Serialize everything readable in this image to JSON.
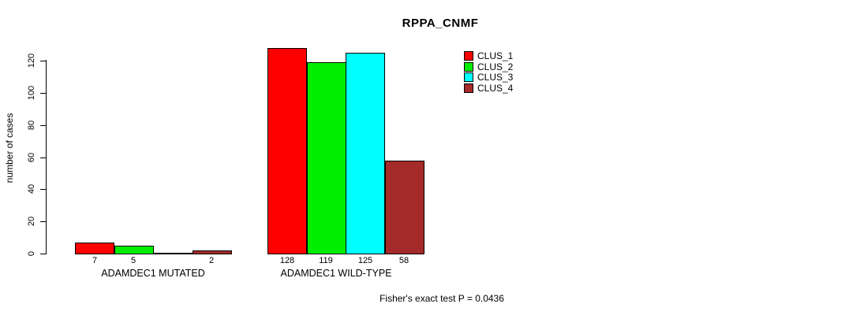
{
  "title": "RPPA_CNMF",
  "chart_data": {
    "type": "bar",
    "title": "RPPA_CNMF",
    "xlabel": "",
    "ylabel": "number of cases",
    "ylim": [
      0,
      120
    ],
    "yticks": [
      0,
      20,
      40,
      60,
      80,
      100,
      120
    ],
    "grid": false,
    "legend_position": "right",
    "categories": [
      "ADAMDEC1 MUTATED",
      "ADAMDEC1 WILD-TYPE"
    ],
    "series": [
      {
        "name": "CLUS_1",
        "color": "#FF0000",
        "values": [
          7,
          128
        ]
      },
      {
        "name": "CLUS_2",
        "color": "#00EE00",
        "values": [
          5,
          119
        ]
      },
      {
        "name": "CLUS_3",
        "color": "#00FFFF",
        "values": [
          0,
          125
        ]
      },
      {
        "name": "CLUS_4",
        "color": "#A52A2A",
        "values": [
          2,
          58
        ]
      }
    ],
    "bar_value_labels": [
      [
        "7",
        "5",
        "",
        "2"
      ],
      [
        "128",
        "119",
        "125",
        "58"
      ]
    ],
    "annotation": "Fisher's exact test P = 0.0436"
  },
  "colors": {
    "background": "#FFFFFF",
    "axis": "#000000",
    "text": "#000000"
  }
}
